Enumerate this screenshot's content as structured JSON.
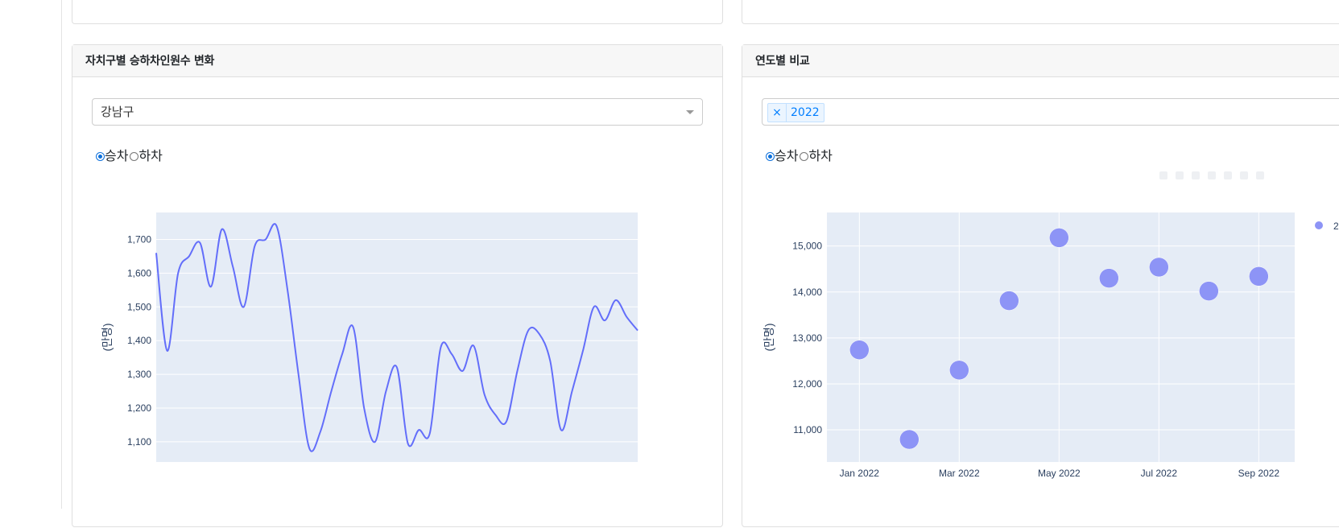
{
  "panels": {
    "left": {
      "title": "자치구별 승하차인원수 변화",
      "selected_district": "강남구",
      "radio_options": [
        "승차",
        "하차"
      ],
      "radio_selected": "승차"
    },
    "right": {
      "title": "연도별 비교",
      "selected_years": [
        "2022"
      ],
      "tag_remove_symbol": "×",
      "radio_options": [
        "승차",
        "하차"
      ],
      "radio_selected": "승차",
      "legend_partial": "2"
    }
  },
  "colors": {
    "line": "#636efa",
    "marker": "#8d94f6",
    "plot_bg": "#e5ecf6",
    "grid": "#ffffff",
    "tick_text": "#2a3f5f"
  },
  "chart_data": [
    {
      "type": "line",
      "ylabel": "(만명)",
      "ylim": [
        1040,
        1780
      ],
      "yticks": [
        1100,
        1200,
        1300,
        1400,
        1500,
        1600,
        1700
      ],
      "ytick_labels": [
        "1,100",
        "1,200",
        "1,300",
        "1,400",
        "1,500",
        "1,600",
        "1,700"
      ],
      "x_axis_labels": [],
      "series": [
        {
          "values": [
            1660,
            1370,
            1600,
            1650,
            1690,
            1560,
            1730,
            1620,
            1500,
            1680,
            1700,
            1740,
            1550,
            1300,
            1080,
            1130,
            1250,
            1360,
            1440,
            1200,
            1100,
            1250,
            1320,
            1095,
            1135,
            1125,
            1380,
            1360,
            1310,
            1385,
            1240,
            1180,
            1160,
            1310,
            1430,
            1420,
            1340,
            1135,
            1250,
            1370,
            1500,
            1460,
            1520,
            1470,
            1430
          ]
        }
      ]
    },
    {
      "type": "scatter",
      "ylabel": "(만명)",
      "ylim": [
        10300,
        15730
      ],
      "yticks": [
        11000,
        12000,
        13000,
        14000,
        15000
      ],
      "ytick_labels": [
        "11,000",
        "12,000",
        "13,000",
        "14,000",
        "15,000"
      ],
      "xticks": [
        "2022-01",
        "2022-03",
        "2022-05",
        "2022-07",
        "2022-09"
      ],
      "xtick_labels": [
        "Jan 2022",
        "Mar 2022",
        "May 2022",
        "Jul 2022",
        "Sep 2022"
      ],
      "x": [
        "2022-01",
        "2022-02",
        "2022-03",
        "2022-04",
        "2022-05",
        "2022-06",
        "2022-07",
        "2022-08",
        "2022-09"
      ],
      "y": [
        12740,
        10790,
        12300,
        13810,
        15180,
        14300,
        14540,
        14020,
        14340
      ]
    }
  ]
}
